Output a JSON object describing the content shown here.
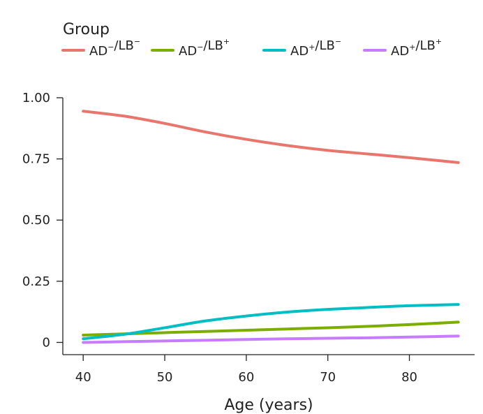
{
  "chart_data": {
    "type": "line",
    "title": "",
    "xlabel": "Age (years)",
    "ylabel": "",
    "xlim": [
      37.5,
      88
    ],
    "ylim": [
      -0.05,
      1.0
    ],
    "xticks": [
      40,
      50,
      60,
      70,
      80
    ],
    "xtick_labels": [
      "40",
      "50",
      "60",
      "70",
      "80"
    ],
    "yticks": [
      0,
      0.25,
      0.5,
      0.75,
      1.0
    ],
    "ytick_labels": [
      "0",
      "0.25",
      "0.50",
      "0.75",
      "1.00"
    ],
    "grid": false,
    "legend": {
      "title": "Group",
      "placement": "top"
    },
    "x": [
      40,
      45,
      50,
      55,
      60,
      65,
      70,
      75,
      80,
      86
    ],
    "series": [
      {
        "name": "AD−/LB−",
        "label_parts": {
          "a": "AD",
          "a_sup": "−",
          "b": "/LB",
          "b_sup": "−"
        },
        "color": "#e8766d",
        "values": [
          0.945,
          0.925,
          0.895,
          0.86,
          0.83,
          0.805,
          0.785,
          0.77,
          0.755,
          0.735
        ]
      },
      {
        "name": "AD−/LB+",
        "label_parts": {
          "a": "AD",
          "a_sup": "−",
          "b": "/LB",
          "b_sup": "+"
        },
        "color": "#7cae00",
        "values": [
          0.03,
          0.035,
          0.04,
          0.045,
          0.05,
          0.055,
          0.06,
          0.066,
          0.073,
          0.083
        ]
      },
      {
        "name": "AD+/LB−",
        "label_parts": {
          "a": "AD",
          "a_sup": "+",
          "b": "/LB",
          "b_sup": "−"
        },
        "color": "#00bfc4",
        "values": [
          0.015,
          0.033,
          0.06,
          0.088,
          0.108,
          0.124,
          0.135,
          0.143,
          0.15,
          0.155
        ]
      },
      {
        "name": "AD+/LB+",
        "label_parts": {
          "a": "AD",
          "a_sup": "+",
          "b": "/LB",
          "b_sup": "+"
        },
        "color": "#c77cff",
        "values": [
          0.0,
          0.003,
          0.006,
          0.009,
          0.012,
          0.015,
          0.017,
          0.019,
          0.022,
          0.026
        ]
      }
    ]
  }
}
